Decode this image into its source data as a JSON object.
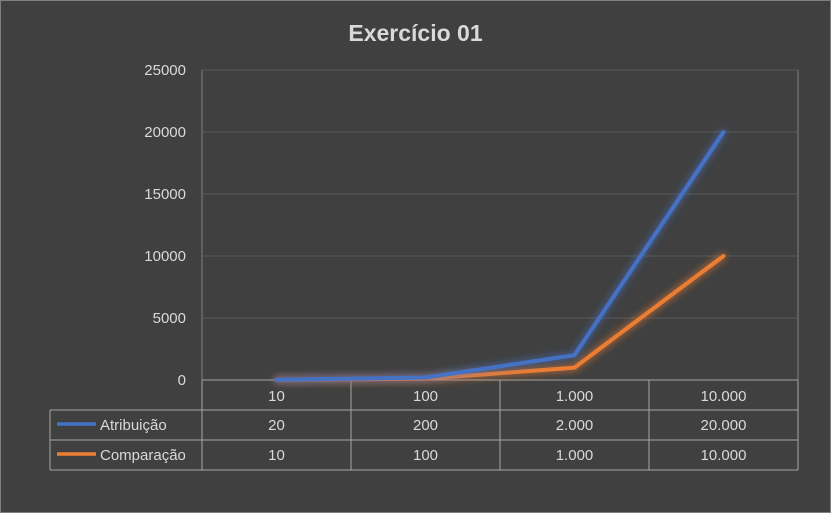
{
  "chart_data": {
    "type": "line",
    "title": "Exercício 01",
    "categories": [
      "10",
      "100",
      "1.000",
      "10.000"
    ],
    "series": [
      {
        "name": "Atribuição",
        "color": "#4472c4",
        "values": [
          20,
          200,
          2000,
          20000
        ],
        "table_values": [
          "20",
          "200",
          "2.000",
          "20.000"
        ]
      },
      {
        "name": "Comparação",
        "color": "#ed7d31",
        "values": [
          10,
          100,
          1000,
          10000
        ],
        "table_values": [
          "10",
          "100",
          "1.000",
          "10.000"
        ]
      }
    ],
    "ylim": [
      0,
      25000
    ],
    "y_ticks": [
      "0",
      "5000",
      "10000",
      "15000",
      "20000",
      "25000"
    ],
    "grid": true,
    "legend": "data-table"
  }
}
